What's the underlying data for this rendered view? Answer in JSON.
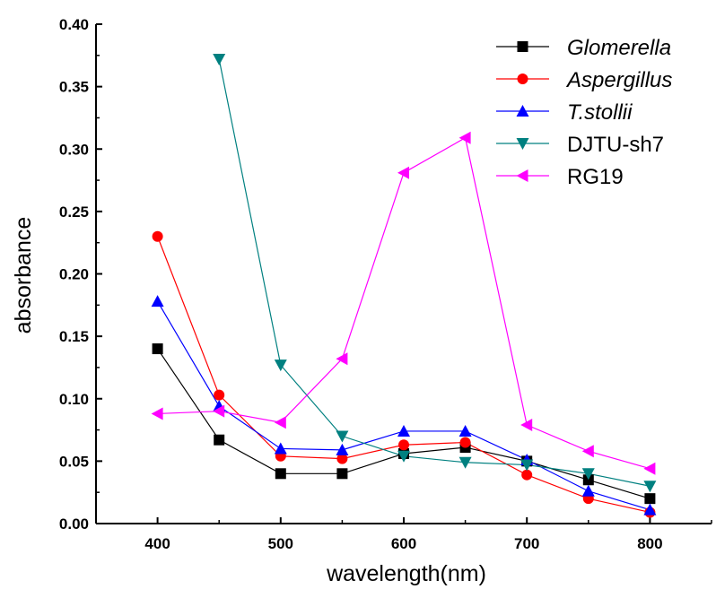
{
  "chart_data": {
    "type": "line",
    "title": "",
    "xlabel": "wavelength(nm)",
    "ylabel": "absorbance",
    "xlim": [
      350,
      850
    ],
    "ylim": [
      0.0,
      0.4
    ],
    "xticks": [
      400,
      500,
      600,
      700,
      800
    ],
    "yticks": [
      0.0,
      0.05,
      0.1,
      0.15,
      0.2,
      0.25,
      0.3,
      0.35,
      0.4
    ],
    "xtick_labels": [
      "400",
      "500",
      "600",
      "700",
      "800"
    ],
    "ytick_labels": [
      "0.00",
      "0.05",
      "0.10",
      "0.15",
      "0.20",
      "0.25",
      "0.30",
      "0.35",
      "0.40"
    ],
    "grid": false,
    "legend_position": "top-right",
    "series": [
      {
        "name": "Glomerella",
        "italic": true,
        "color": "#000000",
        "marker": "square",
        "x": [
          400,
          450,
          500,
          550,
          600,
          650,
          700,
          750,
          800
        ],
        "y": [
          0.14,
          0.067,
          0.04,
          0.04,
          0.056,
          0.061,
          0.05,
          0.035,
          0.02
        ]
      },
      {
        "name": "Aspergillus",
        "italic": true,
        "color": "#ff0000",
        "marker": "circle",
        "x": [
          400,
          450,
          500,
          550,
          600,
          650,
          700,
          750,
          800
        ],
        "y": [
          0.23,
          0.103,
          0.054,
          0.052,
          0.063,
          0.065,
          0.039,
          0.02,
          0.009
        ]
      },
      {
        "name": "T.stollii",
        "italic": true,
        "color": "#0000ff",
        "marker": "triangle-up",
        "x": [
          400,
          450,
          500,
          550,
          600,
          650,
          700,
          750,
          800
        ],
        "y": [
          0.178,
          0.094,
          0.06,
          0.059,
          0.074,
          0.074,
          0.051,
          0.026,
          0.011
        ]
      },
      {
        "name": "DJTU-sh7",
        "italic": false,
        "color": "#008080",
        "marker": "triangle-down",
        "x": [
          450,
          500,
          550,
          600,
          650,
          700,
          750,
          800
        ],
        "y": [
          0.372,
          0.127,
          0.07,
          0.054,
          0.049,
          0.047,
          0.04,
          0.03
        ]
      },
      {
        "name": "RG19",
        "italic": false,
        "color": "#ff00ff",
        "marker": "triangle-left",
        "x": [
          400,
          450,
          500,
          550,
          600,
          650,
          700,
          750,
          800
        ],
        "y": [
          0.088,
          0.09,
          0.081,
          0.132,
          0.281,
          0.309,
          0.079,
          0.058,
          0.044
        ]
      }
    ]
  }
}
